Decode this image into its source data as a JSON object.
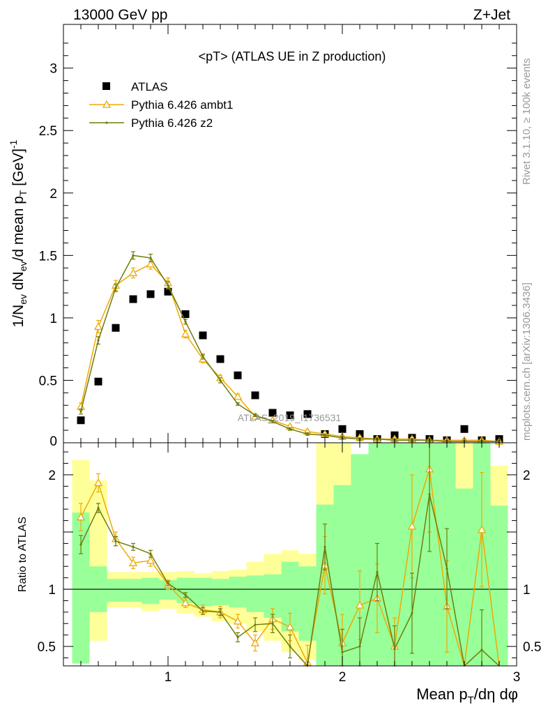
{
  "header": {
    "left": "13000 GeV pp",
    "right": "Z+Jet"
  },
  "side": {
    "rivet": "Rivet 3.1.10, ≥ 100k events",
    "mcplots": "mcplots.cern.ch [arXiv:1306.3436]"
  },
  "chart_data": [
    {
      "type": "scatter",
      "panel": "main",
      "title": "<pT> (ATLAS UE in Z production)",
      "ylabel": "1/N_ev dN_ev/d mean p_T [GeV]^-1",
      "xlim": [
        0.4,
        3.0
      ],
      "ylim": [
        0,
        3.35
      ],
      "yticks": [
        {
          "v": 0.5,
          "label": "0.5"
        },
        {
          "v": 1,
          "label": "1"
        },
        {
          "v": 1.5,
          "label": "1.5"
        },
        {
          "v": 2,
          "label": "2"
        },
        {
          "v": 2.5,
          "label": "2.5"
        },
        {
          "v": 3,
          "label": "3"
        }
      ],
      "y_zero_label": "0",
      "watermark": "ATLAS_2019_I1736531",
      "grid": false,
      "legend_position": "top-left",
      "x": [
        0.5,
        0.6,
        0.7,
        0.8,
        0.9,
        1.0,
        1.1,
        1.2,
        1.3,
        1.4,
        1.5,
        1.6,
        1.7,
        1.8,
        1.9,
        2.0,
        2.1,
        2.2,
        2.3,
        2.4,
        2.5,
        2.6,
        2.7,
        2.8,
        2.9
      ],
      "series": [
        {
          "name": "ATLAS",
          "style": "marker",
          "color": "#000000",
          "values": [
            0.18,
            0.49,
            0.92,
            1.15,
            1.19,
            1.21,
            1.03,
            0.86,
            0.67,
            0.54,
            0.38,
            0.24,
            0.22,
            0.23,
            0.07,
            0.11,
            0.07,
            0.03,
            0.06,
            0.04,
            0.03,
            0.02,
            0.11,
            0.02,
            0.03
          ]
        },
        {
          "name": "Pythia 6.426 ambt1",
          "style": "line-triangle",
          "color": "#f0a800",
          "values": [
            0.29,
            0.93,
            1.26,
            1.36,
            1.43,
            1.28,
            0.87,
            0.67,
            0.52,
            0.37,
            0.21,
            0.18,
            0.13,
            0.09,
            0.07,
            0.05,
            0.04,
            0.03,
            0.03,
            0.03,
            0.02,
            0.02,
            0.02,
            0.02,
            0.01
          ],
          "errors": [
            0.03,
            0.05,
            0.04,
            0.04,
            0.04,
            0.04,
            0.03,
            0.03,
            0.02,
            0.02,
            0.02,
            0.01,
            0.01,
            0.01,
            0.01,
            0.01,
            0.01,
            0.01,
            0.01,
            0.01,
            0.01,
            0.01,
            0.01,
            0.01,
            0.01
          ]
        },
        {
          "name": "Pythia 6.426 z2",
          "style": "line-dot",
          "color": "#6e7d0a",
          "values": [
            0.25,
            0.82,
            1.24,
            1.5,
            1.48,
            1.26,
            0.97,
            0.69,
            0.5,
            0.31,
            0.22,
            0.17,
            0.11,
            0.07,
            0.06,
            0.04,
            0.03,
            0.03,
            0.02,
            0.02,
            0.02,
            0.01,
            0.01,
            0.01,
            0.01
          ],
          "errors": [
            0.02,
            0.03,
            0.03,
            0.03,
            0.03,
            0.03,
            0.02,
            0.02,
            0.02,
            0.01,
            0.01,
            0.01,
            0.01,
            0.01,
            0.01,
            0.01,
            0.01,
            0.01,
            0.01,
            0.01,
            0.01,
            0.01,
            0.01,
            0.01,
            0.01
          ]
        }
      ]
    },
    {
      "type": "line",
      "panel": "ratio",
      "ylabel": "Ratio to ATLAS",
      "xlabel": "Mean p_T/dη dφ",
      "xlim": [
        0.4,
        3.0
      ],
      "ylim": [
        0.33,
        2.28
      ],
      "xticks": [
        {
          "v": 1,
          "label": "1"
        },
        {
          "v": 2,
          "label": "2"
        },
        {
          "v": 3,
          "label": "3"
        }
      ],
      "yticks": [
        {
          "v": 0.5,
          "label": "0.5"
        },
        {
          "v": 1,
          "label": "1"
        },
        {
          "v": 2,
          "label": "2"
        }
      ],
      "reference_line": 1,
      "x": [
        0.5,
        0.6,
        0.7,
        0.8,
        0.9,
        1.0,
        1.1,
        1.2,
        1.3,
        1.4,
        1.5,
        1.6,
        1.7,
        1.8,
        1.9,
        2.0,
        2.1,
        2.2,
        2.3,
        2.4,
        2.5,
        2.6,
        2.7,
        2.8,
        2.9
      ],
      "bands": {
        "bin_edges": [
          0.45,
          0.55,
          0.65,
          0.75,
          0.85,
          0.95,
          1.05,
          1.15,
          1.25,
          1.35,
          1.45,
          1.55,
          1.65,
          1.75,
          1.85,
          1.95,
          2.05,
          2.15,
          2.25,
          2.35,
          2.45,
          2.55,
          2.65,
          2.75,
          2.85,
          2.95
        ],
        "yellow_colour": "#ffff99",
        "green_colour": "#99ff99",
        "yellow_low": [
          0.45,
          0.55,
          0.84,
          0.84,
          0.81,
          0.83,
          0.79,
          0.76,
          0.72,
          0.7,
          0.63,
          0.55,
          0.45,
          0.38,
          0.33,
          0.33,
          0.33,
          0.33,
          0.33,
          0.33,
          0.33,
          0.33,
          0.33,
          0.33,
          0.33
        ],
        "yellow_high": [
          2.13,
          1.95,
          1.15,
          1.15,
          1.15,
          1.15,
          1.16,
          1.14,
          1.16,
          1.17,
          1.24,
          1.31,
          1.34,
          1.31,
          2.28,
          2.28,
          2.08,
          2.18,
          2.28,
          2.28,
          2.28,
          2.28,
          2.28,
          2.28,
          2.08
        ],
        "green_low": [
          0.35,
          0.8,
          0.89,
          0.89,
          0.87,
          0.91,
          0.88,
          0.85,
          0.86,
          0.84,
          0.8,
          0.75,
          0.63,
          0.55,
          0.33,
          0.33,
          0.33,
          0.33,
          0.33,
          0.33,
          0.33,
          0.33,
          0.33,
          0.33,
          0.33
        ],
        "green_high": [
          1.67,
          1.2,
          1.09,
          1.09,
          1.1,
          1.08,
          1.1,
          1.1,
          1.09,
          1.11,
          1.12,
          1.13,
          1.24,
          1.2,
          1.74,
          1.91,
          2.18,
          2.28,
          2.28,
          2.28,
          2.28,
          2.28,
          1.88,
          2.28,
          1.73
        ]
      },
      "series": [
        {
          "name": "Pythia 6.426 ambt1",
          "color": "#f0a800",
          "values": [
            1.63,
            1.93,
            1.44,
            1.23,
            1.25,
            1.04,
            0.88,
            0.82,
            0.8,
            0.72,
            0.53,
            0.74,
            0.67,
            0.36,
            1.21,
            0.53,
            0.86,
            0.92,
            0.5,
            1.55,
            2.05,
            0.85,
            0.25,
            1.52,
            0.25
          ],
          "errors": [
            0.12,
            0.08,
            0.06,
            0.05,
            0.05,
            0.04,
            0.04,
            0.04,
            0.05,
            0.06,
            0.07,
            0.09,
            0.12,
            0.15,
            0.25,
            0.25,
            0.3,
            0.3,
            0.25,
            0.45,
            0.55,
            0.4,
            0.3,
            0.5,
            0.3
          ],
          "x_errors_first": [
            0.06,
            0.18
          ]
        },
        {
          "name": "Pythia 6.426 z2",
          "color": "#6e7d0a",
          "values": [
            1.39,
            1.71,
            1.42,
            1.37,
            1.31,
            1.05,
            0.95,
            0.81,
            0.8,
            0.58,
            0.69,
            0.7,
            0.5,
            0.3,
            1.37,
            0.45,
            0.5,
            1.15,
            0.48,
            0.79,
            1.83,
            1.18,
            0.2,
            0.47,
            0.2
          ],
          "errors": [
            0.08,
            0.04,
            0.04,
            0.03,
            0.03,
            0.02,
            0.02,
            0.03,
            0.03,
            0.04,
            0.06,
            0.08,
            0.1,
            0.12,
            0.2,
            0.2,
            0.25,
            0.25,
            0.2,
            0.35,
            0.5,
            0.35,
            0.25,
            0.35,
            0.25
          ]
        }
      ]
    }
  ]
}
